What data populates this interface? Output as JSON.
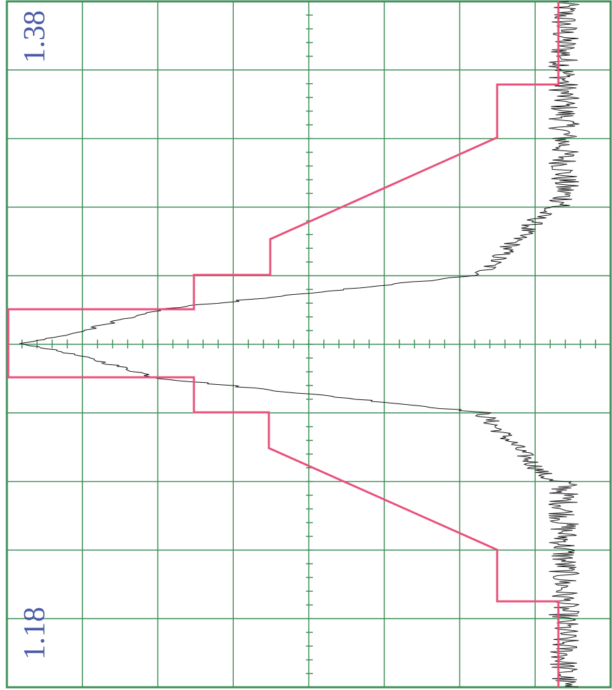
{
  "labels": {
    "top": "1.38",
    "bottom": "1.18"
  }
}
